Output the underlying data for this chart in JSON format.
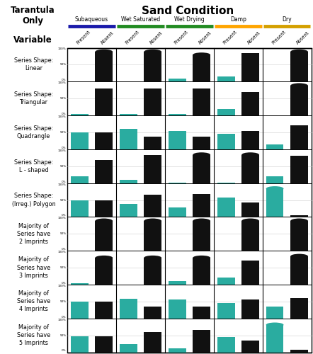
{
  "title": "Sand Condition",
  "left_title": "Tarantula\nOnly",
  "var_label": "Variable",
  "conditions": [
    "Subaqueous",
    "Wet Saturated",
    "Wet Drying",
    "Damp",
    "Dry"
  ],
  "condition_colors": [
    "#1a1aaa",
    "#228B22",
    "#228B22",
    "#FFA500",
    "#D4A000"
  ],
  "col_labels": [
    "Present",
    "Absent",
    "Present",
    "Absent",
    "Present",
    "Absent",
    "Present",
    "Absent",
    "Present",
    "Absent"
  ],
  "row_labels": [
    "Series Shape:\nLinear",
    "Series Shape:\nTriangular",
    "Series Shape:\nQuadrangle",
    "Series Shape:\nL - shaped",
    "Series Shape:\n(Irreg.) Polygon",
    "Majority of\nSeries have\n2 Imprints",
    "Majority of\nSeries have\n3 Imprints",
    "Majority of\nSeries have\n4 Imprints",
    "Majority of\nSeries have\n5 Imprints"
  ],
  "data": [
    [
      [
        0,
        100
      ],
      [
        0,
        100
      ],
      [
        10,
        90
      ],
      [
        15,
        85
      ],
      [
        0,
        100
      ]
    ],
    [
      [
        5,
        80
      ],
      [
        5,
        80
      ],
      [
        5,
        80
      ],
      [
        20,
        70
      ],
      [
        0,
        100
      ]
    ],
    [
      [
        50,
        50
      ],
      [
        60,
        38
      ],
      [
        55,
        38
      ],
      [
        45,
        55
      ],
      [
        15,
        70
      ]
    ],
    [
      [
        20,
        68
      ],
      [
        10,
        82
      ],
      [
        2,
        95
      ],
      [
        2,
        95
      ],
      [
        20,
        80
      ]
    ],
    [
      [
        50,
        50
      ],
      [
        38,
        65
      ],
      [
        28,
        68
      ],
      [
        57,
        42
      ],
      [
        95,
        5
      ]
    ],
    [
      [
        0,
        100
      ],
      [
        0,
        100
      ],
      [
        0,
        100
      ],
      [
        0,
        100
      ],
      [
        0,
        100
      ]
    ],
    [
      [
        5,
        90
      ],
      [
        0,
        90
      ],
      [
        10,
        90
      ],
      [
        20,
        72
      ],
      [
        0,
        95
      ]
    ],
    [
      [
        50,
        50
      ],
      [
        58,
        35
      ],
      [
        55,
        35
      ],
      [
        45,
        55
      ],
      [
        35,
        60
      ]
    ],
    [
      [
        48,
        48
      ],
      [
        25,
        60
      ],
      [
        12,
        65
      ],
      [
        45,
        35
      ],
      [
        92,
        8
      ]
    ]
  ],
  "teal_color": "#2AACA0",
  "black_color": "#111111",
  "bg_color": "#FFFFFF",
  "grid_color": "#CCCCCC",
  "taper_threshold": 88
}
